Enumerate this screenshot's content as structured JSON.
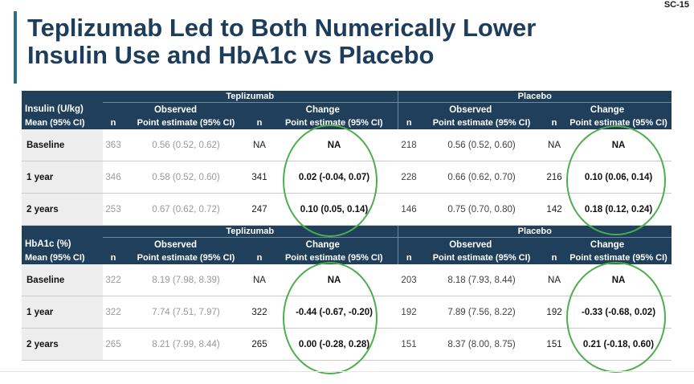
{
  "slide_id": "SC-15",
  "title": {
    "line1": "Teplizumab Led to Both Numerically Lower",
    "line2": "Insulin Use and HbA1c vs Placebo"
  },
  "colors": {
    "header_bg": "#1f3f5b",
    "title": "#1d3d5c",
    "accent_bar": "#2a6f8a",
    "circle": "#4cae4c"
  },
  "tables": [
    {
      "measure_line1": "Insulin (U/kg)",
      "measure_line2": "Mean (95% CI)",
      "group1": "Teplizumab",
      "group2": "Placebo",
      "observed": "Observed",
      "change": "Change",
      "col_n": "n",
      "col_pe": "Point estimate (95% CI)",
      "rows": [
        {
          "label": "Baseline",
          "t_obs_n": "363",
          "t_obs_pe": "0.56 (0.52, 0.62)",
          "t_chg_n": "NA",
          "t_chg_pe": "NA",
          "p_obs_n": "218",
          "p_obs_pe": "0.56 (0.52, 0.60)",
          "p_chg_n": "NA",
          "p_chg_pe": "NA"
        },
        {
          "label": "1 year",
          "t_obs_n": "346",
          "t_obs_pe": "0.58 (0.52, 0.60)",
          "t_chg_n": "341",
          "t_chg_pe": "0.02  (-0.04, 0.07)",
          "p_obs_n": "228",
          "p_obs_pe": "0.66 (0.62, 0.70)",
          "p_chg_n": "216",
          "p_chg_pe": "0.10 (0.06, 0.14)"
        },
        {
          "label": "2 years",
          "t_obs_n": "253",
          "t_obs_pe": "0.67 (0.62, 0.72)",
          "t_chg_n": "247",
          "t_chg_pe": "0.10 (0.05, 0.14)",
          "p_obs_n": "146",
          "p_obs_pe": "0.75 (0.70, 0.80)",
          "p_chg_n": "142",
          "p_chg_pe": "0.18 (0.12, 0.24)"
        }
      ]
    },
    {
      "measure_line1": "HbA1c (%)",
      "measure_line2": "Mean (95% CI)",
      "group1": "Teplizumab",
      "group2": "Placebo",
      "observed": "Observed",
      "change": "Change",
      "col_n": "n",
      "col_pe": "Point estimate (95% CI)",
      "rows": [
        {
          "label": "Baseline",
          "t_obs_n": "322",
          "t_obs_pe": "8.19 (7.98, 8.39)",
          "t_chg_n": "NA",
          "t_chg_pe": "NA",
          "p_obs_n": "203",
          "p_obs_pe": "8.18 (7.93, 8.44)",
          "p_chg_n": "NA",
          "p_chg_pe": "NA"
        },
        {
          "label": "1 year",
          "t_obs_n": "322",
          "t_obs_pe": "7.74 (7.51, 7.97)",
          "t_chg_n": "322",
          "t_chg_pe": "-0.44 (-0.67, -0.20)",
          "p_obs_n": "192",
          "p_obs_pe": "7.89 (7.56, 8.22)",
          "p_chg_n": "192",
          "p_chg_pe": "-0.33 (-0.68, 0.02)"
        },
        {
          "label": "2 years",
          "t_obs_n": "265",
          "t_obs_pe": "8.21 (7.99, 8.44)",
          "t_chg_n": "265",
          "t_chg_pe": "0.00 (-0.28, 0.28)",
          "p_obs_n": "151",
          "p_obs_pe": "8.37 (8.00, 8.75)",
          "p_chg_n": "151",
          "p_chg_pe": "0.21 (-0.18, 0.60)"
        }
      ]
    }
  ]
}
